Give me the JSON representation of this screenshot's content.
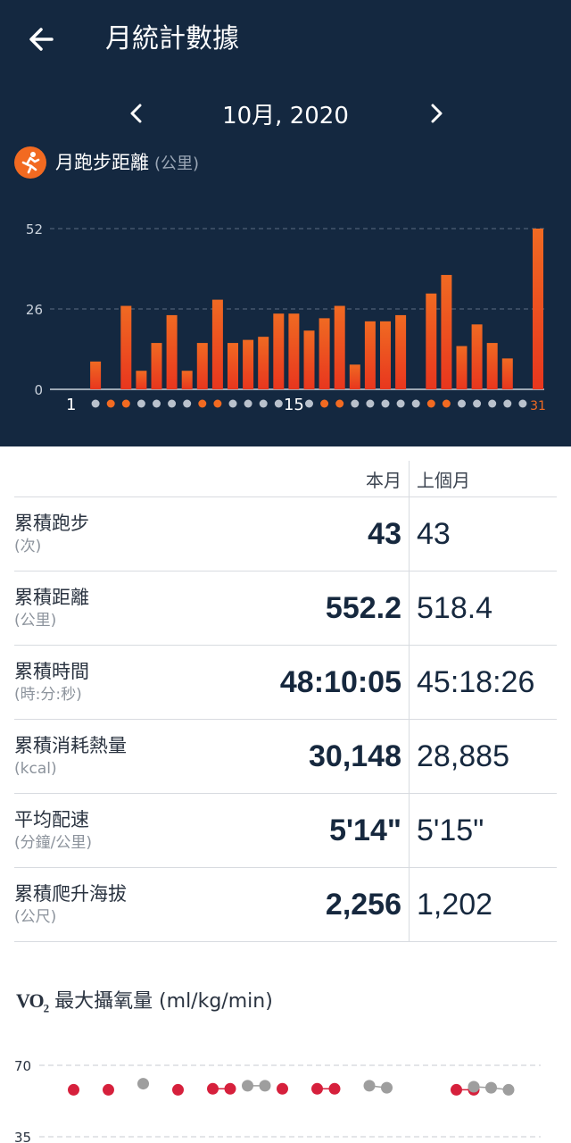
{
  "appbar": {
    "title": "月統計數據",
    "back_icon": "arrow-left-icon"
  },
  "month_nav": {
    "label": "10月, 2020",
    "prev_icon": "chevron-left-icon",
    "next_icon": "chevron-right-icon"
  },
  "metric": {
    "icon": "running-icon",
    "label": "月跑步距離",
    "unit": "(公里)"
  },
  "colors": {
    "header_bg": "#142840",
    "accent": "#f26a21",
    "run_red": "#d6203c",
    "grey_dot": "#9e9e9e"
  },
  "chart_data": [
    {
      "type": "bar",
      "x": [
        1,
        2,
        3,
        4,
        5,
        6,
        7,
        8,
        9,
        10,
        11,
        12,
        13,
        14,
        15,
        16,
        17,
        18,
        19,
        20,
        21,
        22,
        23,
        24,
        25,
        26,
        27,
        28,
        29,
        30,
        31
      ],
      "values": [
        0,
        9,
        0,
        27,
        6,
        15,
        24,
        6,
        15,
        29,
        15,
        16,
        17,
        24.5,
        24.5,
        19,
        23,
        27,
        8,
        22,
        22,
        24,
        0,
        31,
        37,
        14,
        21,
        15,
        10,
        0,
        52
      ],
      "y_ticks": [
        0,
        26,
        52
      ],
      "x_tick_labels": [
        "1",
        "15",
        "31"
      ],
      "run_day_markers": [
        3,
        4,
        9,
        10,
        17,
        18,
        24,
        25,
        31
      ],
      "ylim": [
        0,
        52
      ],
      "grid": true
    },
    {
      "type": "scatter",
      "title": "最大攝氧量 (ml/kg/min)",
      "ylim": [
        35,
        70
      ],
      "y_ticks": [
        35,
        70
      ],
      "series": [
        {
          "color": "#d6203c",
          "x": [
            3,
            5,
            9,
            11,
            12,
            15,
            17,
            18,
            25,
            26
          ],
          "y": [
            58,
            58,
            58,
            58.5,
            58.5,
            58.5,
            58.5,
            58.5,
            58,
            58
          ]
        },
        {
          "color": "#9e9e9e",
          "x": [
            7,
            13,
            14,
            20,
            21,
            26,
            27,
            28
          ],
          "y": [
            61,
            60,
            60,
            60,
            59,
            59.5,
            59,
            58
          ]
        }
      ]
    }
  ],
  "stats": {
    "headers": {
      "current": "本月",
      "previous": "上個月"
    },
    "rows": [
      {
        "name": "累積跑步",
        "unit": "(次)",
        "current": "43",
        "previous": "43"
      },
      {
        "name": "累積距離",
        "unit": "(公里)",
        "current": "552.2",
        "previous": "518.4"
      },
      {
        "name": "累積時間",
        "unit": "(時:分:秒)",
        "current": "48:10:05",
        "previous": "45:18:26"
      },
      {
        "name": "累積消耗熱量",
        "unit": "(kcal)",
        "current": "30,148",
        "previous": "28,885"
      },
      {
        "name": "平均配速",
        "unit": "(分鐘/公里)",
        "current": "5'14\"",
        "previous": "5'15\""
      },
      {
        "name": "累積爬升海拔",
        "unit": "(公尺)",
        "current": "2,256",
        "previous": "1,202"
      }
    ]
  },
  "vo2": {
    "mark": "VO",
    "mark_sub": "2",
    "label": "最大攝氧量 (ml/kg/min)"
  }
}
